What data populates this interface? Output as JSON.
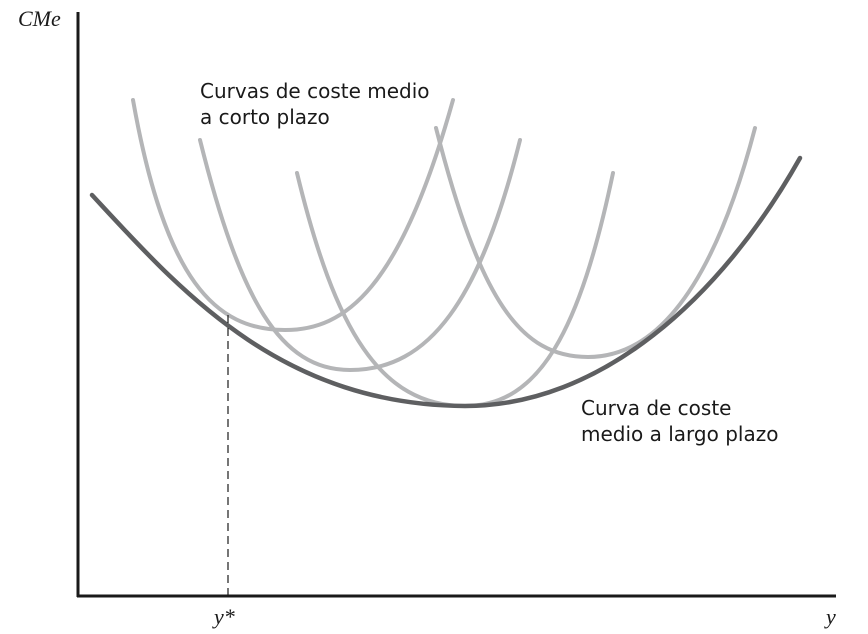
{
  "diagram": {
    "y_axis_label": "CMe",
    "x_axis_label": "y",
    "x_marker_label": "y*",
    "short_run_label": [
      "Curvas de coste medio",
      "a corto plazo"
    ],
    "long_run_label": [
      "Curva de coste",
      "medio a largo plazo"
    ],
    "colors": {
      "axes": "#1a1a1a",
      "short_run_curves": "#b4b5b7",
      "long_run_curve": "#5e5f61"
    }
  }
}
